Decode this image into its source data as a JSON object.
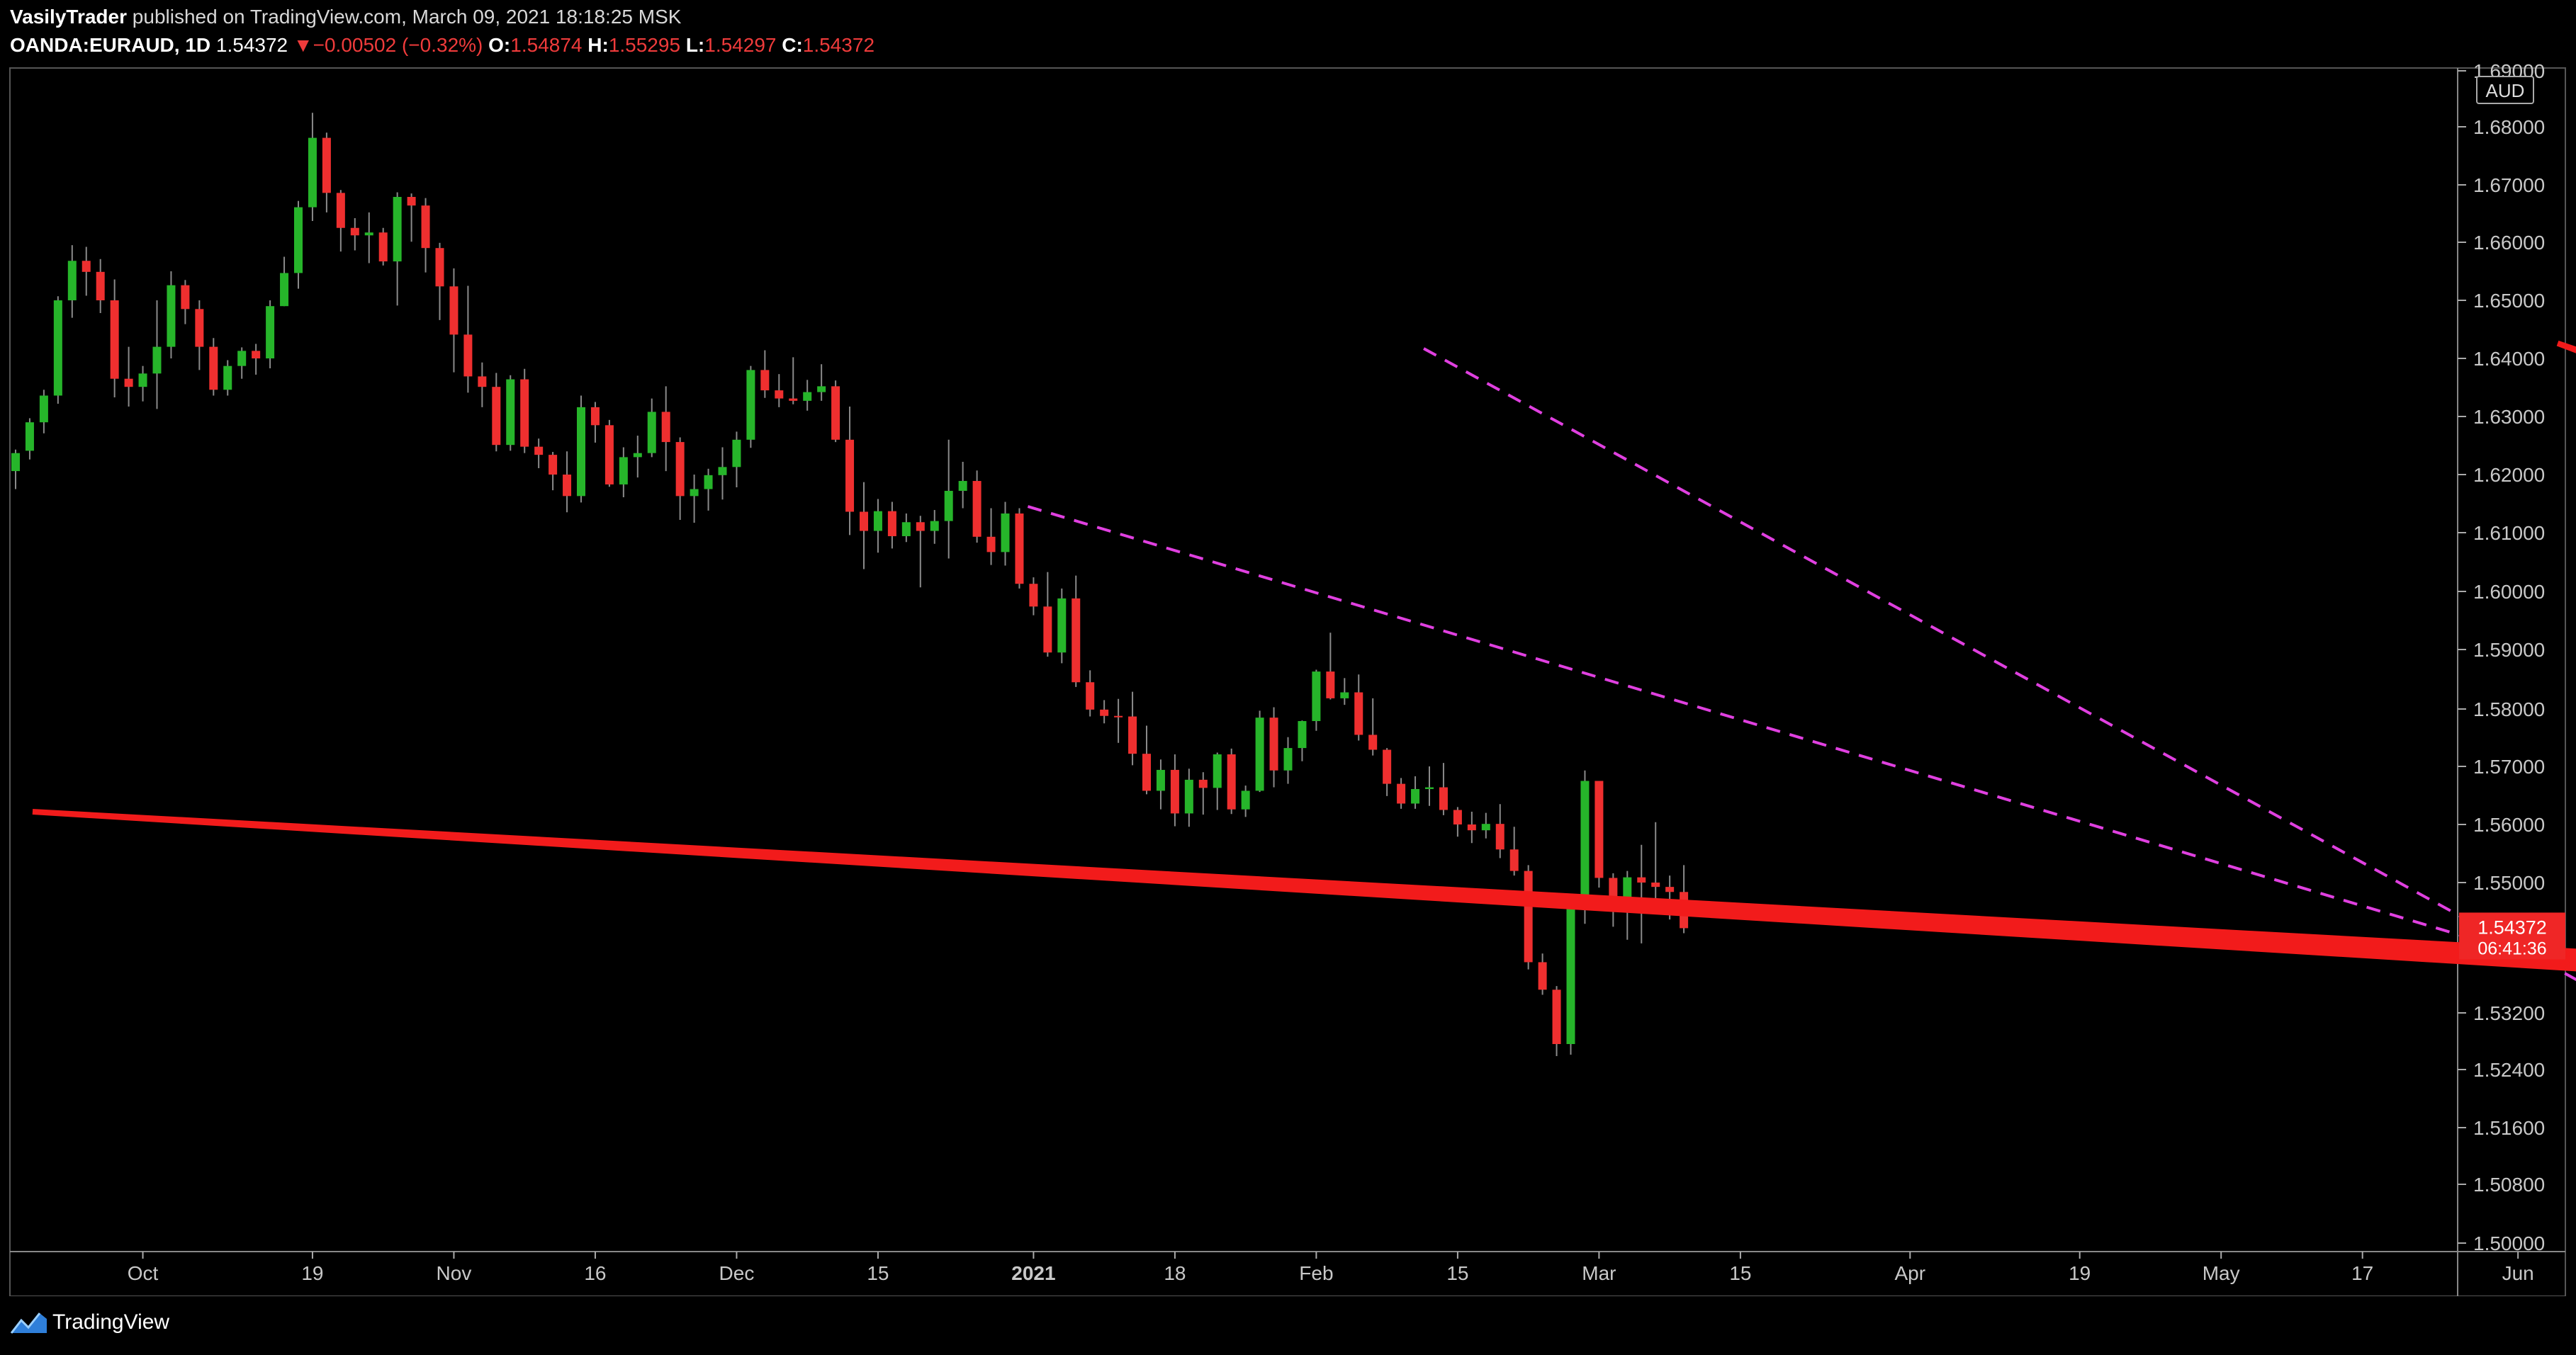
{
  "header": {
    "author": "VasilyTrader",
    "published_text": "published on TradingView.com, March 09, 2021 18:18:25 MSK",
    "symbol": "OANDA:EURAUD, 1D",
    "last": "1.54372",
    "arrow": "▼",
    "change": "−0.00502 (−0.32%)",
    "o_label": "O:",
    "o_value": "1.54874",
    "h_label": "H:",
    "h_value": "1.55295",
    "l_label": "L:",
    "l_value": "1.54297",
    "c_label": "C:",
    "c_value": "1.54372"
  },
  "footer": {
    "brand": "TradingView",
    "logo_icon": "tradingview-logo-icon"
  },
  "colors": {
    "up": "#26b52a",
    "down": "#ef2f2f",
    "wick": "#8a8a8a",
    "channel": "#e040e0",
    "arrow": "#f21b1b",
    "axis": "#c8c8c8",
    "price_badge": "#ef2626",
    "background": "#000000"
  },
  "chart_data": {
    "type": "candlestick",
    "currency_label": "AUD",
    "price_label": "1.54372",
    "countdown_label": "06:41:36",
    "y_scale": "piecewise",
    "yticks": [
      "1.69000",
      "1.68000",
      "1.67000",
      "1.66000",
      "1.65000",
      "1.64000",
      "1.63000",
      "1.62000",
      "1.61000",
      "1.60000",
      "1.59000",
      "1.58000",
      "1.57000",
      "1.56000",
      "1.55000",
      "1.53200",
      "1.52400",
      "1.51600",
      "1.50800",
      "1.50000"
    ],
    "ytick_values": [
      1.69,
      1.68,
      1.67,
      1.66,
      1.65,
      1.64,
      1.63,
      1.62,
      1.61,
      1.6,
      1.59,
      1.58,
      1.57,
      1.56,
      1.55,
      1.532,
      1.524,
      1.516,
      1.508,
      1.5
    ],
    "xticks": [
      {
        "label": "Oct",
        "bar": 9,
        "bold": false
      },
      {
        "label": "19",
        "bar": 21,
        "bold": false
      },
      {
        "label": "Nov",
        "bar": 31,
        "bold": false
      },
      {
        "label": "16",
        "bar": 41,
        "bold": false
      },
      {
        "label": "Dec",
        "bar": 51,
        "bold": false
      },
      {
        "label": "15",
        "bar": 61,
        "bold": false
      },
      {
        "label": "2021",
        "bar": 72,
        "bold": true
      },
      {
        "label": "18",
        "bar": 82,
        "bold": false
      },
      {
        "label": "Feb",
        "bar": 92,
        "bold": false
      },
      {
        "label": "15",
        "bar": 102,
        "bold": false
      },
      {
        "label": "Mar",
        "bar": 112,
        "bold": false
      },
      {
        "label": "15",
        "bar": 122,
        "bold": false
      },
      {
        "label": "Apr",
        "bar": 134,
        "bold": false
      },
      {
        "label": "19",
        "bar": 146,
        "bold": false
      },
      {
        "label": "May",
        "bar": 156,
        "bold": false
      },
      {
        "label": "17",
        "bar": 166,
        "bold": false
      },
      {
        "label": "Jun",
        "bar": 177,
        "bold": false
      }
    ],
    "candles": [
      [
        1.6206,
        1.6243,
        1.6175,
        1.6237
      ],
      [
        1.6241,
        1.6297,
        1.6226,
        1.629
      ],
      [
        1.629,
        1.6346,
        1.6271,
        1.6336
      ],
      [
        1.6336,
        1.6507,
        1.6322,
        1.65
      ],
      [
        1.65,
        1.6595,
        1.647,
        1.6568
      ],
      [
        1.6568,
        1.6592,
        1.6508,
        1.6549
      ],
      [
        1.6549,
        1.6571,
        1.6478,
        1.65
      ],
      [
        1.65,
        1.6536,
        1.6333,
        1.6365
      ],
      [
        1.6365,
        1.642,
        1.6317,
        1.6351
      ],
      [
        1.6351,
        1.6387,
        1.6326,
        1.6374
      ],
      [
        1.6374,
        1.65,
        1.6313,
        1.642
      ],
      [
        1.642,
        1.655,
        1.64,
        1.6526
      ],
      [
        1.6526,
        1.6535,
        1.6459,
        1.6485
      ],
      [
        1.6485,
        1.65,
        1.638,
        1.642
      ],
      [
        1.642,
        1.6435,
        1.6336,
        1.6346
      ],
      [
        1.6346,
        1.6397,
        1.6336,
        1.6387
      ],
      [
        1.6387,
        1.6419,
        1.6365,
        1.6413
      ],
      [
        1.6413,
        1.6425,
        1.6372,
        1.64
      ],
      [
        1.64,
        1.65,
        1.6383,
        1.649
      ],
      [
        1.649,
        1.6575,
        1.649,
        1.6547
      ],
      [
        1.6547,
        1.6672,
        1.652,
        1.6661
      ],
      [
        1.6661,
        1.6825,
        1.6637,
        1.6781
      ],
      [
        1.6781,
        1.679,
        1.6652,
        1.6686
      ],
      [
        1.6686,
        1.6691,
        1.6584,
        1.6625
      ],
      [
        1.6625,
        1.6642,
        1.6586,
        1.6612
      ],
      [
        1.6612,
        1.6652,
        1.6564,
        1.6617
      ],
      [
        1.6617,
        1.6625,
        1.656,
        1.6567
      ],
      [
        1.6567,
        1.6687,
        1.6491,
        1.6679
      ],
      [
        1.6679,
        1.6685,
        1.6601,
        1.6664
      ],
      [
        1.6664,
        1.6677,
        1.6548,
        1.659
      ],
      [
        1.659,
        1.6599,
        1.6466,
        1.6524
      ],
      [
        1.6524,
        1.6555,
        1.6376,
        1.6441
      ],
      [
        1.6441,
        1.6525,
        1.6341,
        1.6369
      ],
      [
        1.6369,
        1.6393,
        1.6316,
        1.6351
      ],
      [
        1.6351,
        1.6375,
        1.624,
        1.6251
      ],
      [
        1.6251,
        1.6371,
        1.6241,
        1.6364
      ],
      [
        1.6364,
        1.6382,
        1.6237,
        1.6248
      ],
      [
        1.6248,
        1.6262,
        1.6211,
        1.6234
      ],
      [
        1.6234,
        1.6239,
        1.6173,
        1.62
      ],
      [
        1.62,
        1.624,
        1.6135,
        1.6163
      ],
      [
        1.6163,
        1.6336,
        1.6152,
        1.6316
      ],
      [
        1.6316,
        1.6325,
        1.6255,
        1.6285
      ],
      [
        1.6285,
        1.6294,
        1.6179,
        1.6183
      ],
      [
        1.6183,
        1.6247,
        1.6161,
        1.623
      ],
      [
        1.623,
        1.6267,
        1.6195,
        1.6237
      ],
      [
        1.6237,
        1.6331,
        1.623,
        1.6308
      ],
      [
        1.6308,
        1.6352,
        1.6206,
        1.6256
      ],
      [
        1.6256,
        1.6264,
        1.6122,
        1.6163
      ],
      [
        1.6163,
        1.62,
        1.6117,
        1.6175
      ],
      [
        1.6175,
        1.621,
        1.6138,
        1.6199
      ],
      [
        1.6199,
        1.6247,
        1.6157,
        1.6213
      ],
      [
        1.6213,
        1.6274,
        1.6178,
        1.626
      ],
      [
        1.626,
        1.6387,
        1.6246,
        1.638
      ],
      [
        1.638,
        1.6414,
        1.6332,
        1.6345
      ],
      [
        1.6345,
        1.6373,
        1.6316,
        1.6331
      ],
      [
        1.6331,
        1.6402,
        1.6321,
        1.6327
      ],
      [
        1.6327,
        1.6363,
        1.631,
        1.6342
      ],
      [
        1.6342,
        1.639,
        1.6327,
        1.6352
      ],
      [
        1.6352,
        1.6362,
        1.6256,
        1.626
      ],
      [
        1.626,
        1.6317,
        1.6096,
        1.6136
      ],
      [
        1.6136,
        1.6187,
        1.6038,
        1.6103
      ],
      [
        1.6103,
        1.6158,
        1.6066,
        1.6137
      ],
      [
        1.6137,
        1.6153,
        1.6073,
        1.6094
      ],
      [
        1.6094,
        1.6133,
        1.6084,
        1.6118
      ],
      [
        1.6118,
        1.6129,
        1.6007,
        1.6103
      ],
      [
        1.6103,
        1.6139,
        1.6081,
        1.612
      ],
      [
        1.612,
        1.626,
        1.6056,
        1.6172
      ],
      [
        1.6172,
        1.6222,
        1.6142,
        1.6189
      ],
      [
        1.6189,
        1.6207,
        1.6083,
        1.6093
      ],
      [
        1.6093,
        1.6142,
        1.6045,
        1.6067
      ],
      [
        1.6067,
        1.6153,
        1.6044,
        1.6133
      ],
      [
        1.6133,
        1.6142,
        1.6005,
        1.6013
      ],
      [
        1.6013,
        1.6024,
        1.5959,
        1.5974
      ],
      [
        1.5974,
        1.6033,
        1.5888,
        1.5895
      ],
      [
        1.5895,
        1.6005,
        1.5877,
        1.5988
      ],
      [
        1.5988,
        1.6027,
        1.5837,
        1.5845
      ],
      [
        1.5845,
        1.5865,
        1.5787,
        1.5799
      ],
      [
        1.5799,
        1.5815,
        1.5775,
        1.5788
      ],
      [
        1.5788,
        1.5817,
        1.5741,
        1.5787
      ],
      [
        1.5787,
        1.5829,
        1.5702,
        1.5722
      ],
      [
        1.5722,
        1.5771,
        1.5652,
        1.5658
      ],
      [
        1.5658,
        1.5712,
        1.5626,
        1.5694
      ],
      [
        1.5694,
        1.5721,
        1.5597,
        1.5619
      ],
      [
        1.5619,
        1.5696,
        1.5596,
        1.5677
      ],
      [
        1.5677,
        1.569,
        1.5617,
        1.5663
      ],
      [
        1.5663,
        1.5724,
        1.5625,
        1.5721
      ],
      [
        1.5721,
        1.5731,
        1.5618,
        1.5626
      ],
      [
        1.5626,
        1.5667,
        1.5613,
        1.5658
      ],
      [
        1.5658,
        1.5797,
        1.5656,
        1.5785
      ],
      [
        1.5785,
        1.5803,
        1.5664,
        1.5693
      ],
      [
        1.5693,
        1.5751,
        1.567,
        1.5732
      ],
      [
        1.5732,
        1.578,
        1.5709,
        1.5779
      ],
      [
        1.5779,
        1.5866,
        1.5762,
        1.5863
      ],
      [
        1.5863,
        1.5929,
        1.5816,
        1.5818
      ],
      [
        1.5818,
        1.5852,
        1.5807,
        1.5828
      ],
      [
        1.5828,
        1.5858,
        1.5745,
        1.5755
      ],
      [
        1.5755,
        1.5818,
        1.5719,
        1.5729
      ],
      [
        1.5729,
        1.5732,
        1.5649,
        1.567
      ],
      [
        1.567,
        1.568,
        1.5627,
        1.5636
      ],
      [
        1.5636,
        1.5683,
        1.5627,
        1.5661
      ],
      [
        1.5661,
        1.57,
        1.5632,
        1.5664
      ],
      [
        1.5664,
        1.5706,
        1.5616,
        1.5625
      ],
      [
        1.5625,
        1.563,
        1.5579,
        1.56
      ],
      [
        1.56,
        1.5622,
        1.5568,
        1.559
      ],
      [
        1.559,
        1.562,
        1.5576,
        1.5601
      ],
      [
        1.5601,
        1.5635,
        1.5542,
        1.5557
      ],
      [
        1.5557,
        1.5596,
        1.5512,
        1.552
      ],
      [
        1.552,
        1.553,
        1.538,
        1.539
      ],
      [
        1.539,
        1.5402,
        1.5345,
        1.5352
      ],
      [
        1.5352,
        1.5357,
        1.5259,
        1.5276
      ],
      [
        1.5276,
        1.5476,
        1.5261,
        1.5467
      ],
      [
        1.5467,
        1.5693,
        1.5443,
        1.5675
      ],
      [
        1.5675,
        1.5675,
        1.5493,
        1.5508
      ],
      [
        1.5508,
        1.5516,
        1.5439,
        1.5469
      ],
      [
        1.5469,
        1.552,
        1.5421,
        1.5509
      ],
      [
        1.5509,
        1.5565,
        1.5416,
        1.55
      ],
      [
        1.55,
        1.5604,
        1.5469,
        1.5494
      ],
      [
        1.5494,
        1.5512,
        1.5449,
        1.5487
      ],
      [
        1.5487,
        1.553,
        1.543,
        1.5437
      ]
    ],
    "channel": {
      "upper": {
        "x1": 99.6,
        "y1": 1.6417,
        "x2": 186.7,
        "y2": 1.5306
      },
      "lower": {
        "x1": 71.6,
        "y1": 1.6145,
        "x2": 229.8,
        "y2": 1.5092
      }
    },
    "arrows": [
      {
        "tail_x": 1.2,
        "tail_y": 1.5622,
        "tip_x": 219.8,
        "tip_y": 1.5349
      },
      {
        "tail_x": 179.8,
        "tail_y": 1.6426,
        "tip_x": 226.8,
        "tip_y": 1.6018
      }
    ]
  }
}
